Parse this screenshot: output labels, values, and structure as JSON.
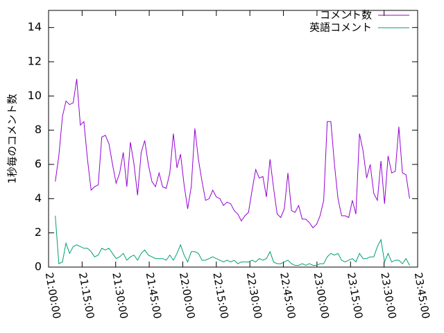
{
  "chart_data": {
    "type": "line",
    "y_label": "1秒毎のコメント数",
    "x": [
      "21:03:00",
      "21:04:36",
      "21:06:12",
      "21:07:48",
      "21:09:24",
      "21:11:00",
      "21:12:36",
      "21:14:12",
      "21:15:48",
      "21:17:24",
      "21:19:00",
      "21:20:36",
      "21:22:12",
      "21:23:48",
      "21:25:24",
      "21:27:00",
      "21:28:36",
      "21:30:12",
      "21:31:48",
      "21:33:24",
      "21:35:00",
      "21:36:36",
      "21:38:12",
      "21:39:48",
      "21:41:24",
      "21:43:00",
      "21:44:36",
      "21:46:12",
      "21:47:48",
      "21:49:24",
      "21:51:00",
      "21:52:36",
      "21:54:12",
      "21:55:48",
      "21:57:24",
      "21:59:00",
      "22:00:36",
      "22:02:12",
      "22:03:48",
      "22:05:24",
      "22:07:00",
      "22:08:36",
      "22:10:12",
      "22:11:48",
      "22:13:24",
      "22:15:00",
      "22:16:36",
      "22:18:12",
      "22:19:48",
      "22:21:24",
      "22:23:00",
      "22:24:36",
      "22:26:12",
      "22:27:48",
      "22:29:24",
      "22:31:00",
      "22:32:36",
      "22:34:12",
      "22:35:48",
      "22:37:24",
      "22:39:00",
      "22:40:36",
      "22:42:12",
      "22:43:48",
      "22:45:24",
      "22:47:00",
      "22:48:36",
      "22:50:12",
      "22:51:48",
      "22:53:24",
      "22:55:00",
      "22:56:36",
      "22:58:12",
      "22:59:48",
      "23:01:24",
      "23:03:00",
      "23:04:36",
      "23:06:12",
      "23:07:48",
      "23:09:24",
      "23:11:00",
      "23:12:36",
      "23:14:12",
      "23:15:48",
      "23:17:24",
      "23:19:00",
      "23:20:36",
      "23:22:12",
      "23:23:48",
      "23:25:24",
      "23:27:00",
      "23:28:36",
      "23:30:12",
      "23:31:48",
      "23:33:24",
      "23:35:00",
      "23:36:36",
      "23:38:12",
      "23:39:48",
      "23:41:24"
    ],
    "series": [
      {
        "name": "コメント数",
        "color": "#9400d3",
        "values": [
          5.0,
          6.5,
          8.8,
          9.7,
          9.5,
          9.6,
          11.0,
          8.3,
          8.5,
          6.3,
          4.5,
          4.7,
          4.8,
          7.6,
          7.7,
          7.2,
          6.0,
          4.9,
          5.5,
          6.7,
          4.7,
          7.3,
          6.0,
          4.2,
          6.7,
          7.4,
          6.0,
          5.0,
          4.7,
          5.5,
          4.7,
          4.6,
          5.5,
          7.8,
          5.8,
          6.6,
          4.8,
          3.4,
          4.7,
          8.1,
          6.3,
          5.0,
          3.9,
          4.0,
          4.5,
          4.1,
          4.0,
          3.6,
          3.8,
          3.7,
          3.3,
          3.1,
          2.7,
          3.0,
          3.2,
          4.5,
          5.7,
          5.2,
          5.3,
          4.1,
          6.3,
          4.6,
          3.1,
          2.9,
          3.4,
          5.5,
          3.3,
          3.2,
          3.6,
          2.8,
          2.8,
          2.6,
          2.3,
          2.5,
          3.0,
          3.9,
          8.5,
          8.5,
          6.0,
          4.0,
          3.0,
          3.0,
          2.9,
          3.9,
          3.1,
          7.8,
          6.8,
          5.2,
          6.0,
          4.3,
          3.9,
          6.2,
          3.7,
          6.5,
          5.5,
          5.6,
          8.2,
          5.5,
          5.4,
          4.0
        ]
      },
      {
        "name": "英語コメント",
        "color": "#009e73",
        "values": [
          3.0,
          0.2,
          0.3,
          1.4,
          0.8,
          1.2,
          1.3,
          1.2,
          1.1,
          1.1,
          0.9,
          0.6,
          0.7,
          1.1,
          1.0,
          1.1,
          0.8,
          0.5,
          0.6,
          0.8,
          0.4,
          0.6,
          0.7,
          0.4,
          0.8,
          1.0,
          0.7,
          0.6,
          0.5,
          0.5,
          0.5,
          0.4,
          0.7,
          0.4,
          0.8,
          1.3,
          0.7,
          0.3,
          0.9,
          0.9,
          0.8,
          0.4,
          0.4,
          0.5,
          0.6,
          0.5,
          0.4,
          0.3,
          0.4,
          0.3,
          0.4,
          0.2,
          0.3,
          0.3,
          0.3,
          0.4,
          0.3,
          0.5,
          0.4,
          0.5,
          0.9,
          0.3,
          0.2,
          0.2,
          0.3,
          0.4,
          0.2,
          0.1,
          0.1,
          0.2,
          0.1,
          0.2,
          0.1,
          0.1,
          0.2,
          0.2,
          0.6,
          0.8,
          0.7,
          0.8,
          0.4,
          0.3,
          0.4,
          0.5,
          0.3,
          0.8,
          0.5,
          0.5,
          0.6,
          0.6,
          1.2,
          1.6,
          0.3,
          0.8,
          0.3,
          0.4,
          0.4,
          0.2,
          0.5,
          0.1
        ]
      }
    ],
    "xlim": [
      "21:00:00",
      "23:45:00"
    ],
    "xticks": [
      "21:00:00",
      "21:15:00",
      "21:30:00",
      "21:45:00",
      "22:00:00",
      "22:15:00",
      "22:30:00",
      "22:45:00",
      "23:00:00",
      "23:15:00",
      "23:30:00",
      "23:45:00"
    ],
    "ylim": [
      0,
      15
    ],
    "yticks": [
      0,
      2,
      4,
      6,
      8,
      10,
      12,
      14
    ],
    "legend": "top-right"
  }
}
